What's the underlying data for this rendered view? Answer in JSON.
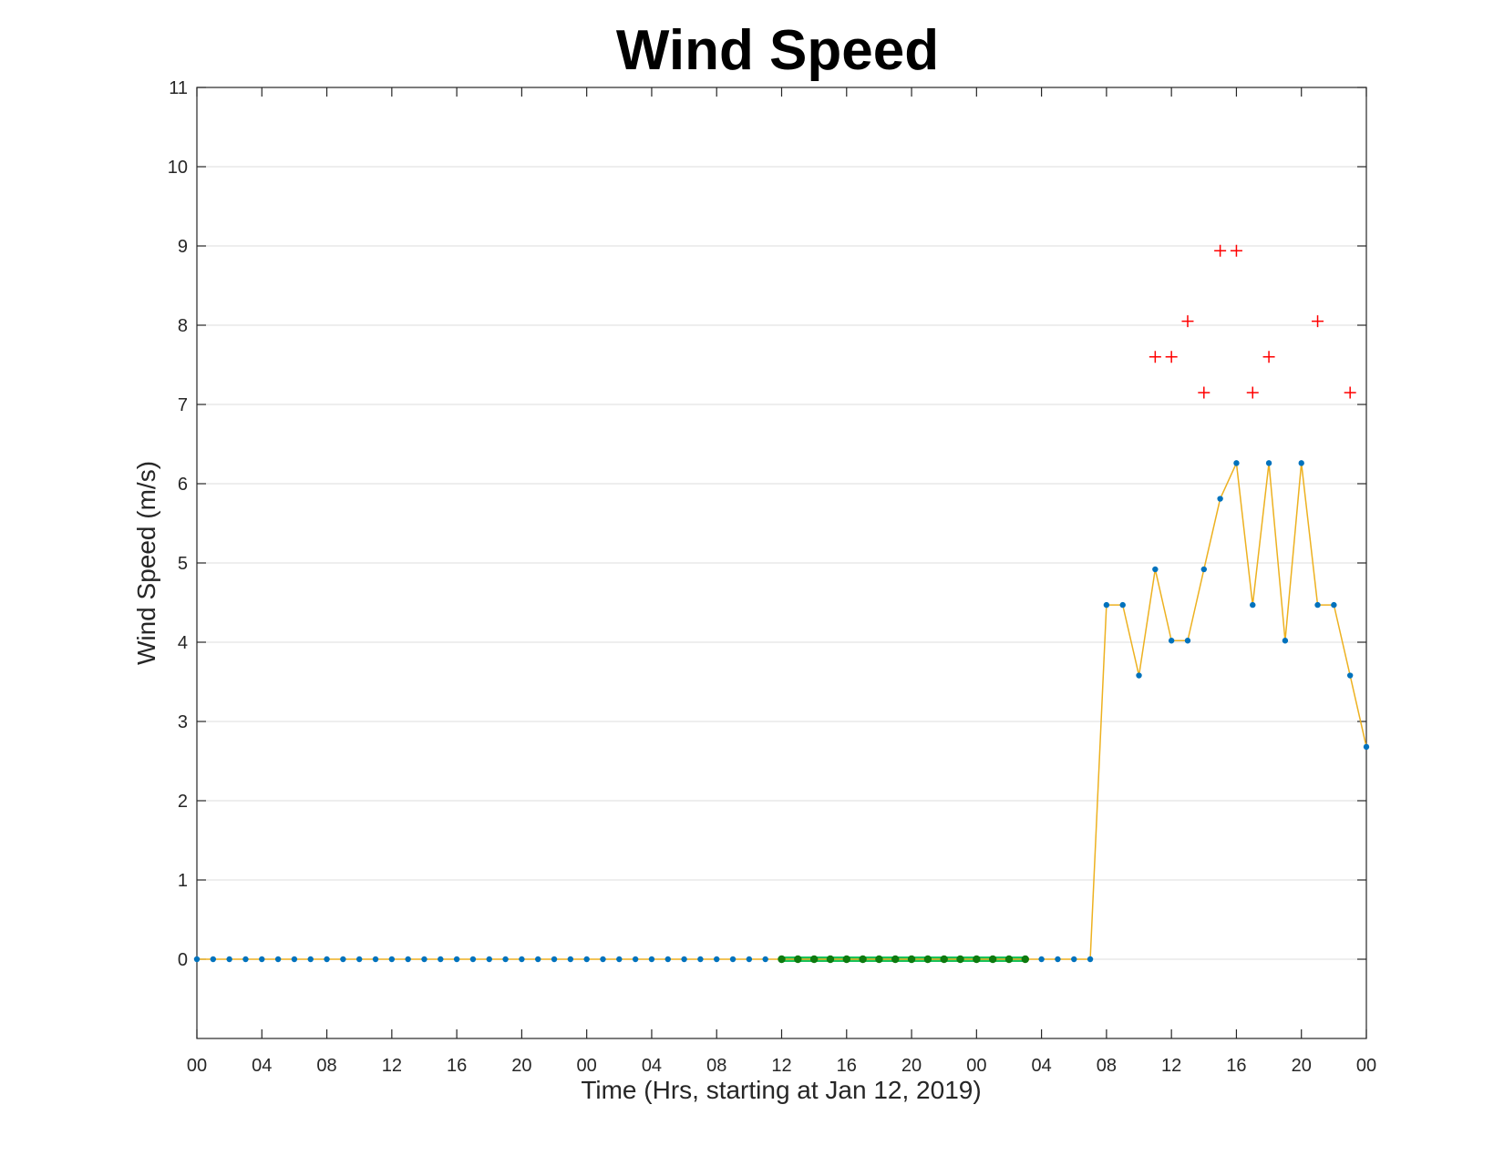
{
  "chart_data": {
    "type": "line",
    "title": "Wind Speed",
    "xlabel": "Time (Hrs, starting at Jan 12, 2019)",
    "ylabel": "Wind Speed (m/s)",
    "start": "Jan 12, 2019 00:00",
    "x_unit": "hour",
    "xlim": [
      0,
      72
    ],
    "ylim": [
      -1,
      11
    ],
    "yticks": [
      0,
      1,
      2,
      3,
      4,
      5,
      6,
      7,
      8,
      9,
      10,
      11
    ],
    "xtick_labels": [
      "00",
      "04",
      "08",
      "12",
      "16",
      "20",
      "00",
      "04",
      "08",
      "12",
      "16",
      "20",
      "00",
      "04",
      "08",
      "12",
      "16",
      "20",
      "00"
    ],
    "grid": "horizontal",
    "colors": {
      "line": "#edb120",
      "marker": "#0072bd",
      "highlight_line": "#19c25a",
      "highlight_marker": "#0e7a0e",
      "gust_marker": "#ff0000"
    },
    "series": [
      {
        "kind": "wind-speed",
        "x": [
          0,
          1,
          2,
          3,
          4,
          5,
          6,
          7,
          8,
          9,
          10,
          11,
          12,
          13,
          14,
          15,
          16,
          17,
          18,
          19,
          20,
          21,
          22,
          23,
          24,
          25,
          26,
          27,
          28,
          29,
          30,
          31,
          32,
          33,
          34,
          35,
          36,
          37,
          38,
          39,
          40,
          41,
          42,
          43,
          44,
          45,
          46,
          47,
          48,
          49,
          50,
          51,
          52,
          53,
          54,
          55,
          56,
          57,
          58,
          59,
          60,
          61,
          62,
          63,
          64,
          65,
          66,
          67,
          68,
          69,
          70,
          71,
          72
        ],
        "values": [
          0,
          0,
          0,
          0,
          0,
          0,
          0,
          0,
          0,
          0,
          0,
          0,
          0,
          0,
          0,
          0,
          0,
          0,
          0,
          0,
          0,
          0,
          0,
          0,
          0,
          0,
          0,
          0,
          0,
          0,
          0,
          0,
          0,
          0,
          0,
          0,
          0,
          0,
          0,
          0,
          0,
          0,
          0,
          0,
          0,
          0,
          0,
          0,
          0,
          0,
          0,
          0,
          0,
          0,
          0,
          0,
          4.47,
          4.47,
          3.58,
          4.92,
          4.02,
          4.02,
          4.92,
          5.81,
          6.26,
          4.47,
          6.26,
          4.02,
          6.26,
          4.47,
          4.47,
          3.58,
          2.68
        ]
      },
      {
        "kind": "highlighted-period",
        "x": [
          36,
          37,
          38,
          39,
          40,
          41,
          42,
          43,
          44,
          45,
          46,
          47,
          48,
          49,
          50,
          51
        ],
        "values": [
          0,
          0,
          0,
          0,
          0,
          0,
          0,
          0,
          0,
          0,
          0,
          0,
          0,
          0,
          0,
          0
        ]
      },
      {
        "kind": "gusts",
        "x": [
          59,
          60,
          61,
          62,
          63,
          64,
          65,
          66,
          69,
          71
        ],
        "values": [
          7.6,
          7.6,
          8.05,
          7.15,
          8.94,
          8.94,
          7.15,
          7.6,
          8.05,
          7.15
        ]
      }
    ]
  }
}
